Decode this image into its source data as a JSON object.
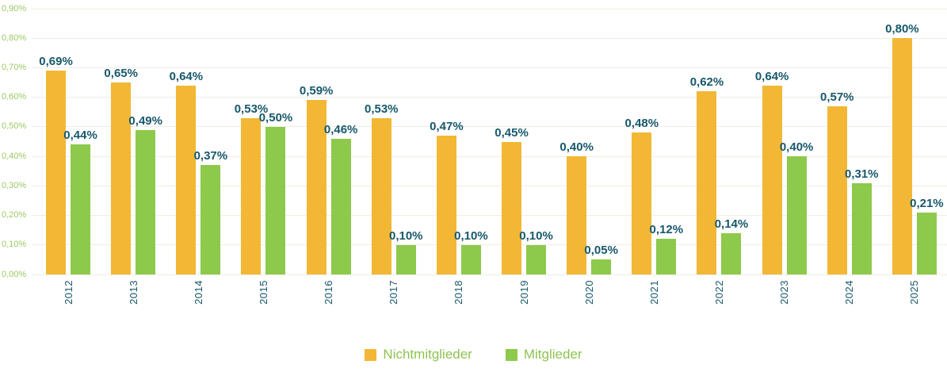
{
  "chart_data": {
    "type": "bar",
    "title": "",
    "xlabel": "",
    "ylabel": "",
    "grid": true,
    "legend_position": "bottom",
    "categories": [
      "2012",
      "2013",
      "2014",
      "2015",
      "2016",
      "2017",
      "2018",
      "2019",
      "2020",
      "2021",
      "2022",
      "2023",
      "2024",
      "2025"
    ],
    "series": [
      {
        "name": "Nichtmitglieder",
        "color": "#f2b735",
        "values": [
          0.69,
          0.65,
          0.64,
          0.53,
          0.59,
          0.53,
          0.47,
          0.45,
          0.4,
          0.48,
          0.62,
          0.64,
          0.57,
          0.8
        ],
        "display_labels": [
          "0,69%",
          "0,65%",
          "0,64%",
          "0,53%",
          "0,59%",
          "0,53%",
          "0,47%",
          "0,45%",
          "0,40%",
          "0,48%",
          "0,62%",
          "0,64%",
          "0,57%",
          "0,80%"
        ]
      },
      {
        "name": "Mitglieder",
        "color": "#8dc94b",
        "values": [
          0.44,
          0.49,
          0.37,
          0.5,
          0.46,
          0.1,
          0.1,
          0.1,
          0.05,
          0.12,
          0.14,
          0.4,
          0.31,
          0.21
        ],
        "display_labels": [
          "0,44%",
          "0,49%",
          "0,37%",
          "0,50%",
          "0,46%",
          "0,10%",
          "0,10%",
          "0,10%",
          "0,05%",
          "0,12%",
          "0,14%",
          "0,40%",
          "0,31%",
          "0,21%"
        ]
      }
    ],
    "y_axis": {
      "min": 0,
      "max": 0.9,
      "ticks": [
        {
          "value": 0.0,
          "label": "0,00%"
        },
        {
          "value": 0.1,
          "label": "0,10%"
        },
        {
          "value": 0.2,
          "label": "0,20%"
        },
        {
          "value": 0.3,
          "label": "0,30%"
        },
        {
          "value": 0.4,
          "label": "0,40%"
        },
        {
          "value": 0.5,
          "label": "0,50%"
        },
        {
          "value": 0.6,
          "label": "0,60%"
        },
        {
          "value": 0.7,
          "label": "0,70%"
        },
        {
          "value": 0.8,
          "label": "0,80%"
        },
        {
          "value": 0.9,
          "label": "0,90%"
        }
      ]
    }
  },
  "colors": {
    "value_label": "#17586b",
    "axis_tick_label": "#9cc962",
    "legend_text": "#8fc350",
    "gridline": "#efede3",
    "background": "#ffffff"
  }
}
